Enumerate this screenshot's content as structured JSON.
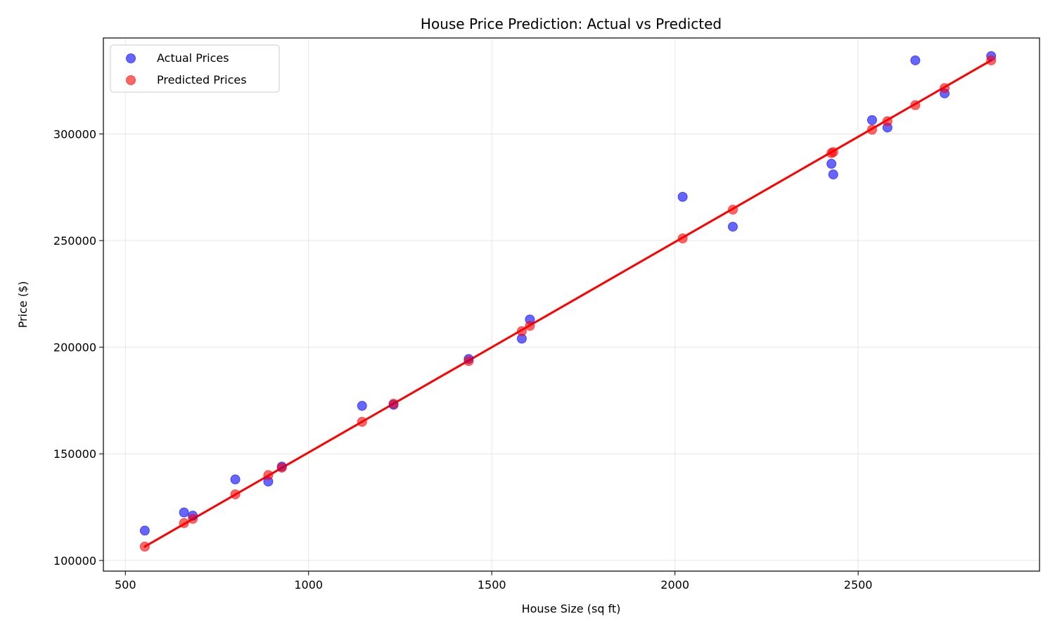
{
  "chart_data": {
    "type": "scatter",
    "title": "House Price Prediction: Actual vs Predicted",
    "xlabel": "House Size (sq ft)",
    "ylabel": "Price ($)",
    "xlim": [
      440,
      2995
    ],
    "ylim": [
      95000,
      345000
    ],
    "xticks": [
      500,
      1000,
      1500,
      2000,
      2500
    ],
    "yticks": [
      100000,
      150000,
      200000,
      250000,
      300000
    ],
    "xtick_labels": [
      "500",
      "1000",
      "1500",
      "2000",
      "2500"
    ],
    "ytick_labels": [
      "100000",
      "150000",
      "200000",
      "250000",
      "300000"
    ],
    "grid": true,
    "legend_position": "top-left",
    "x": [
      553,
      660,
      684,
      800,
      890,
      927,
      1146,
      1232,
      1437,
      1582,
      1604,
      2021,
      2158,
      2427,
      2432,
      2538,
      2580,
      2656,
      2736,
      2863
    ],
    "series": [
      {
        "name": "Actual Prices",
        "color": "#0000ff",
        "values": [
          114000,
          122500,
          121000,
          138000,
          137000,
          144000,
          172500,
          173000,
          194500,
          204000,
          213000,
          270500,
          256500,
          286000,
          281000,
          306500,
          303000,
          334500,
          319000,
          336500
        ]
      },
      {
        "name": "Predicted Prices",
        "color": "#ff0000",
        "values": [
          106500,
          117500,
          119500,
          131000,
          140000,
          143500,
          165000,
          173500,
          193500,
          207500,
          210000,
          251000,
          264500,
          291000,
          291500,
          302000,
          306000,
          313500,
          321500,
          334500
        ]
      }
    ],
    "regression_line": {
      "color": "#ff0000",
      "x": [
        553,
        2863
      ],
      "y": [
        106500,
        334500
      ]
    }
  }
}
